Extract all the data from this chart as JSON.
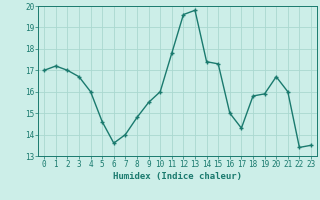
{
  "x": [
    0,
    1,
    2,
    3,
    4,
    5,
    6,
    7,
    8,
    9,
    10,
    11,
    12,
    13,
    14,
    15,
    16,
    17,
    18,
    19,
    20,
    21,
    22,
    23
  ],
  "y": [
    17.0,
    17.2,
    17.0,
    16.7,
    16.0,
    14.6,
    13.6,
    14.0,
    14.8,
    15.5,
    16.0,
    17.8,
    19.6,
    19.8,
    17.4,
    17.3,
    15.0,
    14.3,
    15.8,
    15.9,
    16.7,
    16.0,
    13.4,
    13.5
  ],
  "line_color": "#1a7a6e",
  "marker": "+",
  "marker_size": 3,
  "line_width": 1.0,
  "xlabel": "Humidex (Indice chaleur)",
  "bg_color": "#cceee8",
  "grid_color": "#aad8d0",
  "xlim": [
    -0.5,
    23.5
  ],
  "ylim": [
    13,
    20
  ],
  "yticks": [
    13,
    14,
    15,
    16,
    17,
    18,
    19,
    20
  ],
  "xticks": [
    0,
    1,
    2,
    3,
    4,
    5,
    6,
    7,
    8,
    9,
    10,
    11,
    12,
    13,
    14,
    15,
    16,
    17,
    18,
    19,
    20,
    21,
    22,
    23
  ],
  "tick_fontsize": 5.5,
  "label_fontsize": 6.5
}
